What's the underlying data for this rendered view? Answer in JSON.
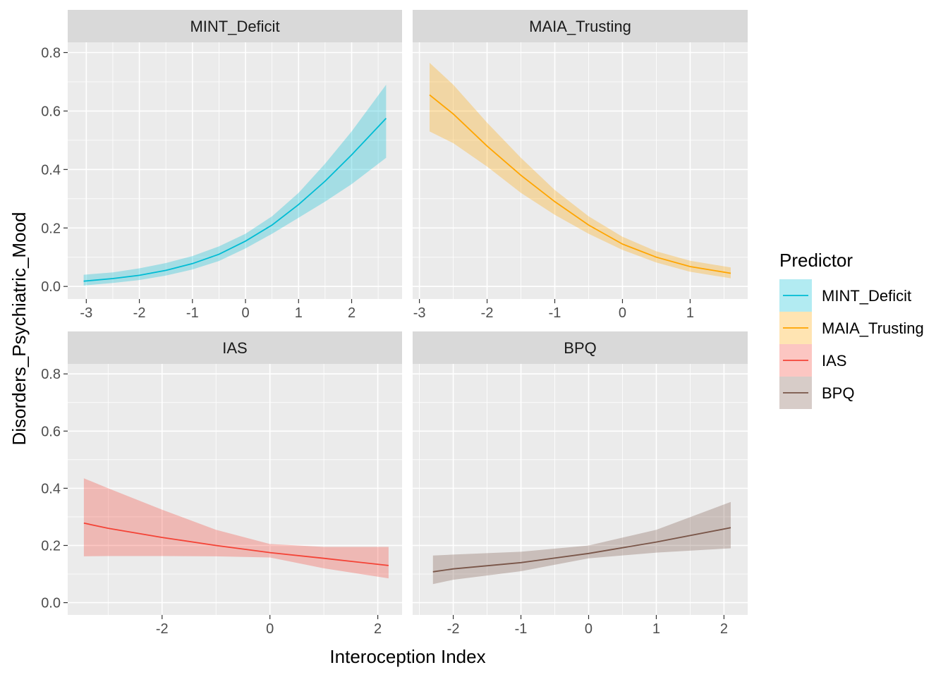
{
  "chart_data": {
    "type": "line",
    "facet_layout": "2x2",
    "ylabel": "Disorders_Psychiatric_Mood",
    "xlabel": "Interoception Index",
    "ylim": [
      0,
      0.8
    ],
    "yticks": [
      0.0,
      0.2,
      0.4,
      0.6,
      0.8
    ],
    "ytick_labels": [
      "0.0",
      "0.2",
      "0.4",
      "0.6",
      "0.8"
    ],
    "grid": true,
    "legend": {
      "title": "Predictor",
      "position": "right",
      "entries": [
        {
          "name": "MINT_Deficit",
          "color": "#00BCD4"
        },
        {
          "name": "MAIA_Trusting",
          "color": "#FFA500"
        },
        {
          "name": "IAS",
          "color": "#F44336"
        },
        {
          "name": "BPQ",
          "color": "#795548"
        }
      ]
    },
    "panels": [
      {
        "name": "MINT_Deficit",
        "color": "#00BCD4",
        "xlim": [
          -3.35,
          2.95
        ],
        "xticks": [
          -3,
          -2,
          -1,
          0,
          1,
          2
        ],
        "xtick_labels": [
          "-3",
          "-2",
          "-1",
          "0",
          "1",
          "2"
        ],
        "x": [
          -3.05,
          -2.5,
          -2.0,
          -1.5,
          -1.0,
          -0.5,
          0.0,
          0.5,
          1.0,
          1.5,
          2.0,
          2.65
        ],
        "y": [
          0.018,
          0.027,
          0.038,
          0.055,
          0.078,
          0.11,
          0.155,
          0.21,
          0.28,
          0.36,
          0.45,
          0.575
        ],
        "lower": [
          0.003,
          0.012,
          0.022,
          0.037,
          0.058,
          0.087,
          0.13,
          0.18,
          0.235,
          0.29,
          0.35,
          0.44
        ],
        "upper": [
          0.04,
          0.048,
          0.062,
          0.08,
          0.104,
          0.137,
          0.18,
          0.24,
          0.32,
          0.42,
          0.53,
          0.69
        ]
      },
      {
        "name": "MAIA_Trusting",
        "color": "#FFA500",
        "xlim": [
          -3.1,
          1.85
        ],
        "xticks": [
          -3,
          -2,
          -1,
          0,
          1
        ],
        "xtick_labels": [
          "-3",
          "-2",
          "-1",
          "0",
          "1"
        ],
        "x": [
          -2.85,
          -2.5,
          -2.0,
          -1.5,
          -1.0,
          -0.5,
          0.0,
          0.5,
          1.0,
          1.6
        ],
        "y": [
          0.655,
          0.59,
          0.48,
          0.38,
          0.29,
          0.21,
          0.145,
          0.1,
          0.068,
          0.045
        ],
        "lower": [
          0.53,
          0.49,
          0.41,
          0.32,
          0.245,
          0.18,
          0.125,
          0.082,
          0.05,
          0.028
        ],
        "upper": [
          0.765,
          0.69,
          0.56,
          0.44,
          0.33,
          0.24,
          0.17,
          0.12,
          0.088,
          0.065
        ]
      },
      {
        "name": "IAS",
        "color": "#F44336",
        "xlim": [
          -3.75,
          2.45
        ],
        "xticks": [
          -2,
          0,
          2
        ],
        "xtick_labels": [
          "-2",
          "0",
          "2"
        ],
        "x": [
          -3.45,
          -3.0,
          -2.0,
          -1.0,
          0.0,
          1.0,
          2.2
        ],
        "y": [
          0.278,
          0.26,
          0.228,
          0.2,
          0.175,
          0.155,
          0.13
        ],
        "lower": [
          0.162,
          0.163,
          0.163,
          0.162,
          0.158,
          0.12,
          0.085
        ],
        "upper": [
          0.435,
          0.4,
          0.325,
          0.255,
          0.205,
          0.195,
          0.195
        ]
      },
      {
        "name": "BPQ",
        "color": "#795548",
        "xlim": [
          -2.6,
          2.35
        ],
        "xticks": [
          -2,
          -1,
          0,
          1,
          2
        ],
        "xtick_labels": [
          "-2",
          "-1",
          "0",
          "1",
          "2"
        ],
        "x": [
          -2.3,
          -2.0,
          -1.0,
          0.0,
          1.0,
          2.1
        ],
        "y": [
          0.108,
          0.118,
          0.14,
          0.172,
          0.212,
          0.262
        ],
        "lower": [
          0.065,
          0.08,
          0.11,
          0.155,
          0.175,
          0.19
        ],
        "upper": [
          0.165,
          0.168,
          0.178,
          0.2,
          0.255,
          0.352
        ]
      }
    ]
  }
}
